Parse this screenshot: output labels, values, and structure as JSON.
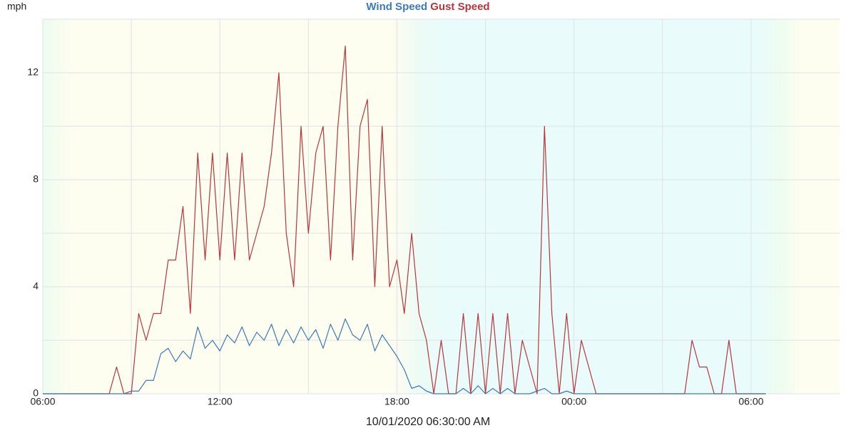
{
  "chart_data": {
    "type": "line",
    "y_label": "mph",
    "x_label": "10/01/2020 06:30:00 AM",
    "x": [
      6,
      6.25,
      6.5,
      6.75,
      7,
      7.25,
      7.5,
      7.75,
      8,
      8.25,
      8.5,
      8.75,
      9,
      9.25,
      9.5,
      9.75,
      10,
      10.25,
      10.5,
      10.75,
      11,
      11.25,
      11.5,
      11.75,
      12,
      12.25,
      12.5,
      12.75,
      13,
      13.25,
      13.5,
      13.75,
      14,
      14.25,
      14.5,
      14.75,
      15,
      15.25,
      15.5,
      15.75,
      16,
      16.25,
      16.5,
      16.75,
      17,
      17.25,
      17.5,
      17.75,
      18,
      18.25,
      18.5,
      18.75,
      19,
      19.25,
      19.5,
      19.75,
      20,
      20.25,
      20.5,
      20.75,
      21,
      21.25,
      21.5,
      21.75,
      22,
      22.25,
      22.5,
      22.75,
      23,
      23.25,
      23.5,
      23.75,
      24,
      24.25,
      24.5,
      24.75,
      25,
      25.25,
      25.5,
      25.75,
      26,
      26.25,
      26.5,
      26.75,
      27,
      27.25,
      27.5,
      27.75,
      28,
      28.25,
      28.5,
      28.75,
      29,
      29.25,
      29.5,
      29.75,
      30,
      30.25,
      30.5
    ],
    "series": [
      {
        "name": "Wind Speed",
        "color": "#3d7ab8",
        "values": [
          0,
          0,
          0,
          0,
          0,
          0,
          0,
          0,
          0,
          0,
          0,
          0,
          0.1,
          0.1,
          0.5,
          0.5,
          1.5,
          1.7,
          1.2,
          1.6,
          1.3,
          2.5,
          1.7,
          2.0,
          1.6,
          2.2,
          1.9,
          2.5,
          1.8,
          2.3,
          2.0,
          2.6,
          1.8,
          2.4,
          1.9,
          2.5,
          2.0,
          2.4,
          1.7,
          2.6,
          2.0,
          2.8,
          2.2,
          2.0,
          2.6,
          1.6,
          2.2,
          1.8,
          1.4,
          0.9,
          0.2,
          0.3,
          0.1,
          0,
          0,
          0,
          0,
          0.2,
          0,
          0.3,
          0,
          0.2,
          0,
          0.2,
          0,
          0,
          0,
          0.1,
          0.2,
          0,
          0,
          0.1,
          0,
          0,
          0,
          0,
          0,
          0,
          0,
          0,
          0,
          0,
          0,
          0,
          0,
          0,
          0,
          0,
          0,
          0,
          0,
          0,
          0,
          0,
          0,
          0,
          0,
          0,
          0
        ]
      },
      {
        "name": "Gust Speed",
        "color": "#b8363b",
        "values": [
          0,
          0,
          0,
          0,
          0,
          0,
          0,
          0,
          0,
          0,
          1,
          0,
          0,
          3,
          2,
          3,
          3,
          5,
          5,
          7,
          3,
          9,
          5,
          9,
          5,
          9,
          5,
          9,
          5,
          6,
          7,
          9,
          12,
          6,
          4,
          10,
          6,
          9,
          10,
          5,
          10,
          13,
          5,
          10,
          11,
          4,
          10,
          4,
          5,
          3,
          6,
          3,
          2,
          0,
          2,
          0,
          0,
          3,
          0,
          3,
          0,
          3,
          0,
          3,
          0,
          2,
          1,
          0,
          10,
          3,
          0,
          3,
          0,
          2,
          1,
          0,
          0,
          0,
          0,
          0,
          0,
          0,
          0,
          0,
          0,
          0,
          0,
          0,
          2,
          1,
          1,
          0,
          0,
          2,
          0,
          0,
          0,
          0,
          0
        ]
      }
    ],
    "xlim": [
      6,
      33
    ],
    "xticks": [
      {
        "value": 6,
        "label": "06:00"
      },
      {
        "value": 12,
        "label": "12:00"
      },
      {
        "value": 18,
        "label": "18:00"
      },
      {
        "value": 24,
        "label": "00:00"
      },
      {
        "value": 30,
        "label": "06:00"
      }
    ],
    "xgrid": [
      9,
      15,
      21,
      27
    ],
    "ylim": [
      0,
      14
    ],
    "yticks": [
      0,
      4,
      8,
      12
    ],
    "ygrid": [
      2,
      6,
      10,
      14
    ],
    "grid": true
  }
}
